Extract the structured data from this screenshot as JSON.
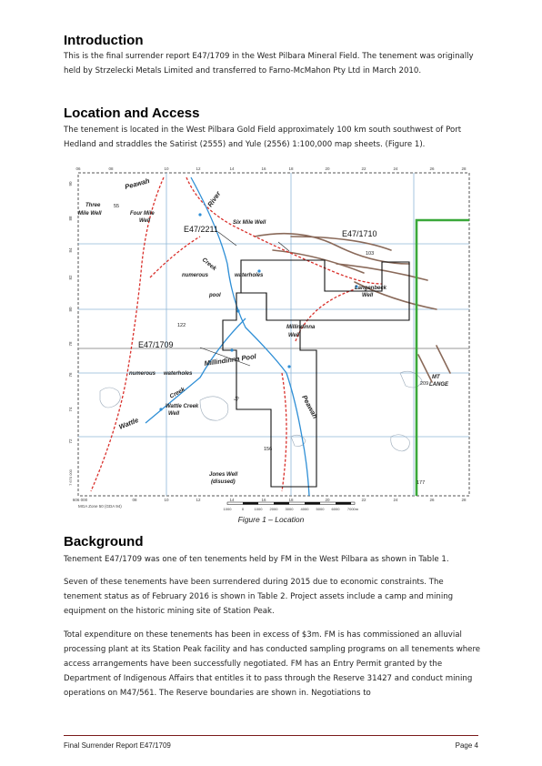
{
  "sections": {
    "introduction": {
      "heading": "Introduction",
      "paragraphs": [
        "This is the final surrender report E47/1709 in the West Pilbara Mineral Field. The tenement was originally held by Strzelecki Metals Limited and transferred to Farno-McMahon Pty Ltd in March 2010."
      ]
    },
    "location": {
      "heading": "Location and Access",
      "paragraphs": [
        "The tenement is located in the West Pilbara Gold Field approximately 100 km south southwest of Port Hedland and straddles the Satirist (2555) and Yule (2556) 1:100,000 map sheets. (Figure 1)."
      ]
    },
    "background": {
      "heading": "Background",
      "paragraphs": [
        "Tenement E47/1709 was one of ten tenements held by FM in the West Pilbara as shown in Table 1.",
        "Seven of these tenements have been surrendered during 2015 due to economic constraints. The tenement status as of February 2016 is shown in Table 2. Project assets include a camp and mining equipment on the historic mining site of Station Peak.",
        "Total expenditure on these tenements has been in excess of $3m. FM is has commissioned an alluvial processing plant at its Station Peak facility and has conducted sampling programs on all tenements where access arrangements have been successfully negotiated. FM has an Entry Permit granted by the Department of Indigenous Affairs that entitles it to pass through the Reserve 31427 and conduct mining operations on M47/561. The Reserve boundaries are shown in. Negotiations to"
      ]
    }
  },
  "figure": {
    "caption": "Figure 1 – Location",
    "grid_labels_top": [
      "06",
      "08",
      "10",
      "12",
      "14",
      "16",
      "18",
      "20",
      "22",
      "24",
      "26",
      "28"
    ],
    "grid_labels_bottom": [
      "606 000",
      "08",
      "10",
      "12",
      "14",
      "16",
      "18",
      "20",
      "22",
      "24",
      "26",
      "28"
    ],
    "grid_labels_left": [
      "90",
      "88",
      "84",
      "82",
      "80",
      "78",
      "76",
      "74",
      "72"
    ],
    "corner_label": "7 670 000",
    "zone_label": "MGA Zone 50 (GDA 94)",
    "scale_ticks": [
      "1000",
      "0",
      "1000",
      "2000",
      "3000",
      "4000",
      "5000",
      "6000",
      "7000m"
    ],
    "tenement_labels": [
      "E47/2211",
      "E47/1710",
      "E47/1709"
    ],
    "place_labels": {
      "peawah_top": "Peawah",
      "river": "River",
      "three_mile_well_1": "Three",
      "three_mile_well_2": "Mile Well",
      "four_mile_well_1": "Four Mile",
      "four_mile_well_2": "Well",
      "spot_55": "55",
      "six_mile_well": "Six Mile Well",
      "spot_103": "103",
      "creek_top": "Creek",
      "numerous_1": "numerous",
      "waterholes_1": "waterholes",
      "pool": "pool",
      "langenbeck_1": "Langenbeck",
      "langenbeck_2": "Well",
      "spot_122": "122",
      "millindinna_well_1": "Millindinna",
      "millindinna_well_2": "Well",
      "millindinna_pool": "Millindinna Pool",
      "numerous_2": "numerous",
      "waterholes_2": "waterholes",
      "creek_mid": "Creek",
      "wattle_creek_well_1": "Wattle Creek",
      "wattle_creek_well_2": "Well",
      "wattle": "Wattle",
      "spot_209": "209",
      "mt_langen_1": "MT",
      "mt_langen_2": "LANGE",
      "peawah_bottom": "Peawah",
      "spot_156": "156",
      "jones_well_1": "Jones Well",
      "jones_well_2": "(disused)",
      "spot_177": "177",
      "spot_18": "18"
    },
    "colors": {
      "track": "#d9302b",
      "river": "#2f8fd6",
      "grid": "#8fb8d8",
      "boundary": "#111111",
      "green_boundary": "#3aa83a",
      "ridge": "#8a6a5a"
    }
  },
  "footer": {
    "left": "Final Surrender Report E47/1709",
    "right": "Page 4"
  }
}
